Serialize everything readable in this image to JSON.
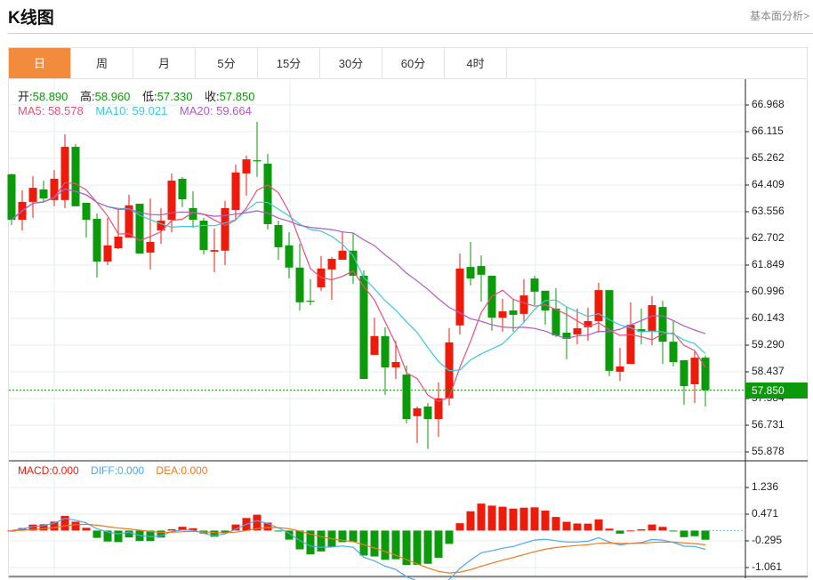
{
  "header": {
    "title": "K线图",
    "link": "基本面分析>"
  },
  "tabs": [
    {
      "label": "日",
      "active": true
    },
    {
      "label": "周"
    },
    {
      "label": "月"
    },
    {
      "label": "5分"
    },
    {
      "label": "15分"
    },
    {
      "label": "30分"
    },
    {
      "label": "60分"
    },
    {
      "label": "4时"
    }
  ],
  "ohlc": {
    "open_label": "开:",
    "open": "58.890",
    "high_label": "高:",
    "high": "58.960",
    "low_label": "低:",
    "low": "57.330",
    "close_label": "收:",
    "close": "57.850"
  },
  "ma": {
    "ma5": "MA5: 58.578",
    "ma10": "MA10: 59.021",
    "ma20": "MA20: 59.664"
  },
  "macd_legend": {
    "macd": "MACD:0.000",
    "diff": "DIFF:0.000",
    "dea": "DEA:0.000"
  },
  "colors": {
    "up": "#f01a0a",
    "down": "#0a9a0a",
    "ma5": "#e9507a",
    "ma10": "#3cc8dc",
    "ma20": "#b05ac8",
    "diff": "#4aa8f0",
    "dea": "#f07820",
    "accent": "#f28c3c"
  },
  "chart_data": {
    "type": "candlestick",
    "last_price": "57.850",
    "y_ticks": [
      "66.968",
      "66.115",
      "65.262",
      "64.409",
      "63.556",
      "62.702",
      "61.849",
      "60.996",
      "60.143",
      "59.290",
      "58.437",
      "57.584",
      "56.731",
      "55.878"
    ],
    "ylim": [
      55.878,
      66.968
    ],
    "macd_ticks": [
      "1.236",
      "0.471",
      "-0.295",
      "-1.061"
    ],
    "macd_ylim": [
      -1.061,
      1.236
    ],
    "candles": [
      [
        64.75,
        64.78,
        63.13,
        63.3
      ],
      [
        63.3,
        64.24,
        62.96,
        63.87
      ],
      [
        63.87,
        64.69,
        63.36,
        64.32
      ],
      [
        64.27,
        64.55,
        63.87,
        63.98
      ],
      [
        63.93,
        64.89,
        63.73,
        64.61
      ],
      [
        63.93,
        66.03,
        63.67,
        65.63
      ],
      [
        65.63,
        65.72,
        63.73,
        63.73
      ],
      [
        63.84,
        63.84,
        62.73,
        63.3
      ],
      [
        63.33,
        63.5,
        61.45,
        61.96
      ],
      [
        61.96,
        63.36,
        61.85,
        62.48
      ],
      [
        62.39,
        63.67,
        62.36,
        62.76
      ],
      [
        62.73,
        64.1,
        62.73,
        63.76
      ],
      [
        63.81,
        63.81,
        62.22,
        62.22
      ],
      [
        62.25,
        63.98,
        61.71,
        62.59
      ],
      [
        62.96,
        63.67,
        62.53,
        63.27
      ],
      [
        63.3,
        64.78,
        62.9,
        64.55
      ],
      [
        64.61,
        64.67,
        63.7,
        63.95
      ],
      [
        63.67,
        64.21,
        63.04,
        63.3
      ],
      [
        63.27,
        63.36,
        62.19,
        62.33
      ],
      [
        62.28,
        63.02,
        61.62,
        62.33
      ],
      [
        62.31,
        63.9,
        61.85,
        63.67
      ],
      [
        63.61,
        65.06,
        63.27,
        64.81
      ],
      [
        64.78,
        65.35,
        64.07,
        65.23
      ],
      [
        65.2,
        66.43,
        64.67,
        65.18
      ],
      [
        65.09,
        65.4,
        62.99,
        63.16
      ],
      [
        63.13,
        63.27,
        62.02,
        62.42
      ],
      [
        62.48,
        62.9,
        61.42,
        61.77
      ],
      [
        61.77,
        62.53,
        60.4,
        60.66
      ],
      [
        60.71,
        61.4,
        60.57,
        60.68
      ],
      [
        61.14,
        62.14,
        61.03,
        61.74
      ],
      [
        61.71,
        62.11,
        60.74,
        62.05
      ],
      [
        62.02,
        62.9,
        62.02,
        62.31
      ],
      [
        62.31,
        62.87,
        61.25,
        61.51
      ],
      [
        61.51,
        61.68,
        58.21,
        58.21
      ],
      [
        58.98,
        60.17,
        58.98,
        59.58
      ],
      [
        59.58,
        59.86,
        57.7,
        58.58
      ],
      [
        58.58,
        59.43,
        58.21,
        58.75
      ],
      [
        58.35,
        58.64,
        56.79,
        56.93
      ],
      [
        57.02,
        57.33,
        56.16,
        57.27
      ],
      [
        57.33,
        57.44,
        55.97,
        56.93
      ],
      [
        56.93,
        58.1,
        56.36,
        57.59
      ],
      [
        57.59,
        59.83,
        57.36,
        59.38
      ],
      [
        59.92,
        62.22,
        59.63,
        61.74
      ],
      [
        61.79,
        62.59,
        61.2,
        61.42
      ],
      [
        61.82,
        62.16,
        60.68,
        61.54
      ],
      [
        61.51,
        61.51,
        59.75,
        60.17
      ],
      [
        60.17,
        60.77,
        59.72,
        60.37
      ],
      [
        60.4,
        60.77,
        59.72,
        60.26
      ],
      [
        60.29,
        61.4,
        60.0,
        60.88
      ],
      [
        61.42,
        61.51,
        60.57,
        61.0
      ],
      [
        61.03,
        61.03,
        59.94,
        60.4
      ],
      [
        60.46,
        61.11,
        59.55,
        59.6
      ],
      [
        59.69,
        60.51,
        58.84,
        59.49
      ],
      [
        59.63,
        60.46,
        59.32,
        59.83
      ],
      [
        59.86,
        60.49,
        59.43,
        60.06
      ],
      [
        60.06,
        61.28,
        59.69,
        61.05
      ],
      [
        61.05,
        61.05,
        58.3,
        58.47
      ],
      [
        58.44,
        59.21,
        58.15,
        58.61
      ],
      [
        58.69,
        60.66,
        58.69,
        59.94
      ],
      [
        59.8,
        60.46,
        59.32,
        59.72
      ],
      [
        59.72,
        60.86,
        59.29,
        60.57
      ],
      [
        60.51,
        60.71,
        58.69,
        59.4
      ],
      [
        59.4,
        60.09,
        58.61,
        58.75
      ],
      [
        58.81,
        58.81,
        57.39,
        57.98
      ],
      [
        58.04,
        59.09,
        57.44,
        58.89
      ],
      [
        58.89,
        58.96,
        57.33,
        57.85
      ]
    ]
  }
}
